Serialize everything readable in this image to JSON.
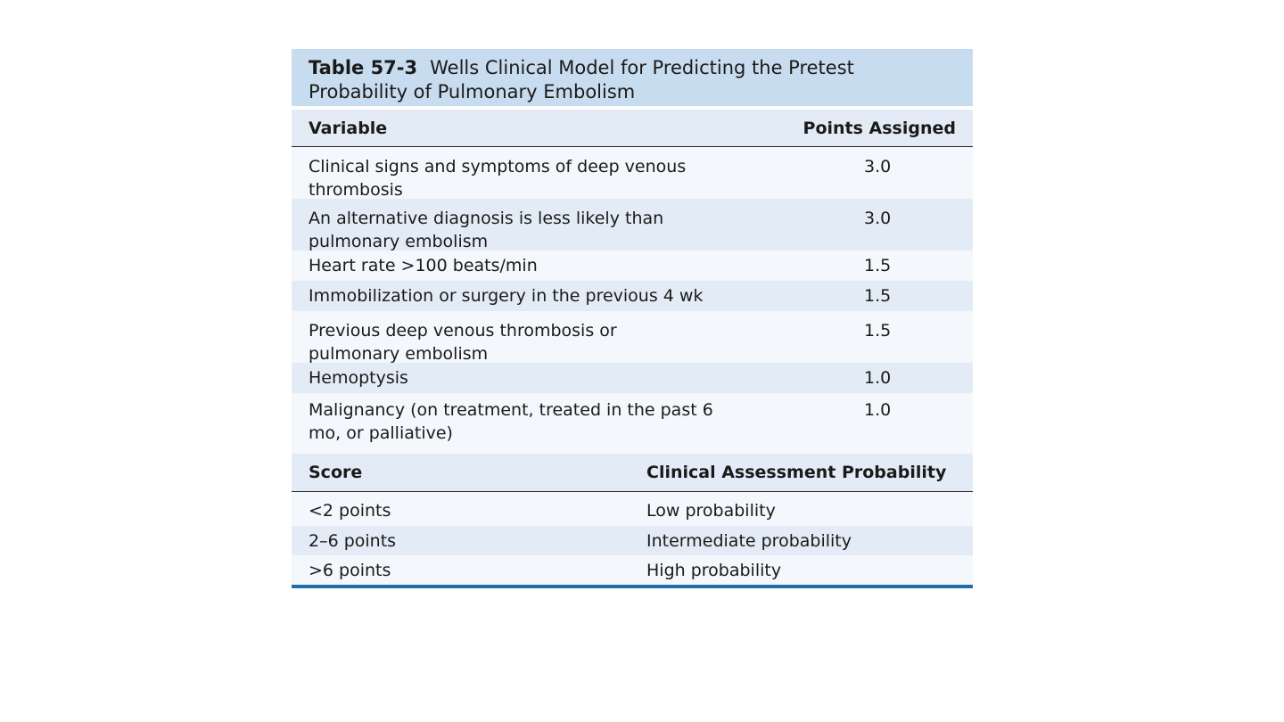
{
  "table": {
    "number": "Table 57-3",
    "title": "Wells Clinical Model for Predicting the Pretest Probability of Pulmonary Embolism",
    "variables_header": {
      "variable": "Variable",
      "points": "Points Assigned"
    },
    "variables": [
      {
        "label": "Clinical signs and symptoms of deep venous thrombosis",
        "points": "3.0"
      },
      {
        "label": "An alternative diagnosis is less likely than pulmonary embolism",
        "points": "3.0"
      },
      {
        "label": "Heart rate >100 beats/min",
        "points": "1.5"
      },
      {
        "label": "Immobilization or surgery in the previous 4 wk",
        "points": "1.5"
      },
      {
        "label": "Previous deep venous thrombosis or pulmonary embolism",
        "points": "1.5"
      },
      {
        "label": "Hemoptysis",
        "points": "1.0"
      },
      {
        "label": "Malignancy (on treatment, treated in the past 6 mo, or palliative)",
        "points": "1.0"
      }
    ],
    "score_header": {
      "score": "Score",
      "probability": "Clinical Assessment Probability"
    },
    "scores": [
      {
        "score": "<2 points",
        "probability": "Low probability"
      },
      {
        "score": "2–6 points",
        "probability": "Intermediate probability"
      },
      {
        "score": ">6 points",
        "probability": "High probability"
      }
    ]
  },
  "colors": {
    "title_band": "#c8dcef",
    "row_alt": "#e3ecf6",
    "row_base": "#f4f7fb",
    "bottom_rule": "#1e6ea8"
  }
}
